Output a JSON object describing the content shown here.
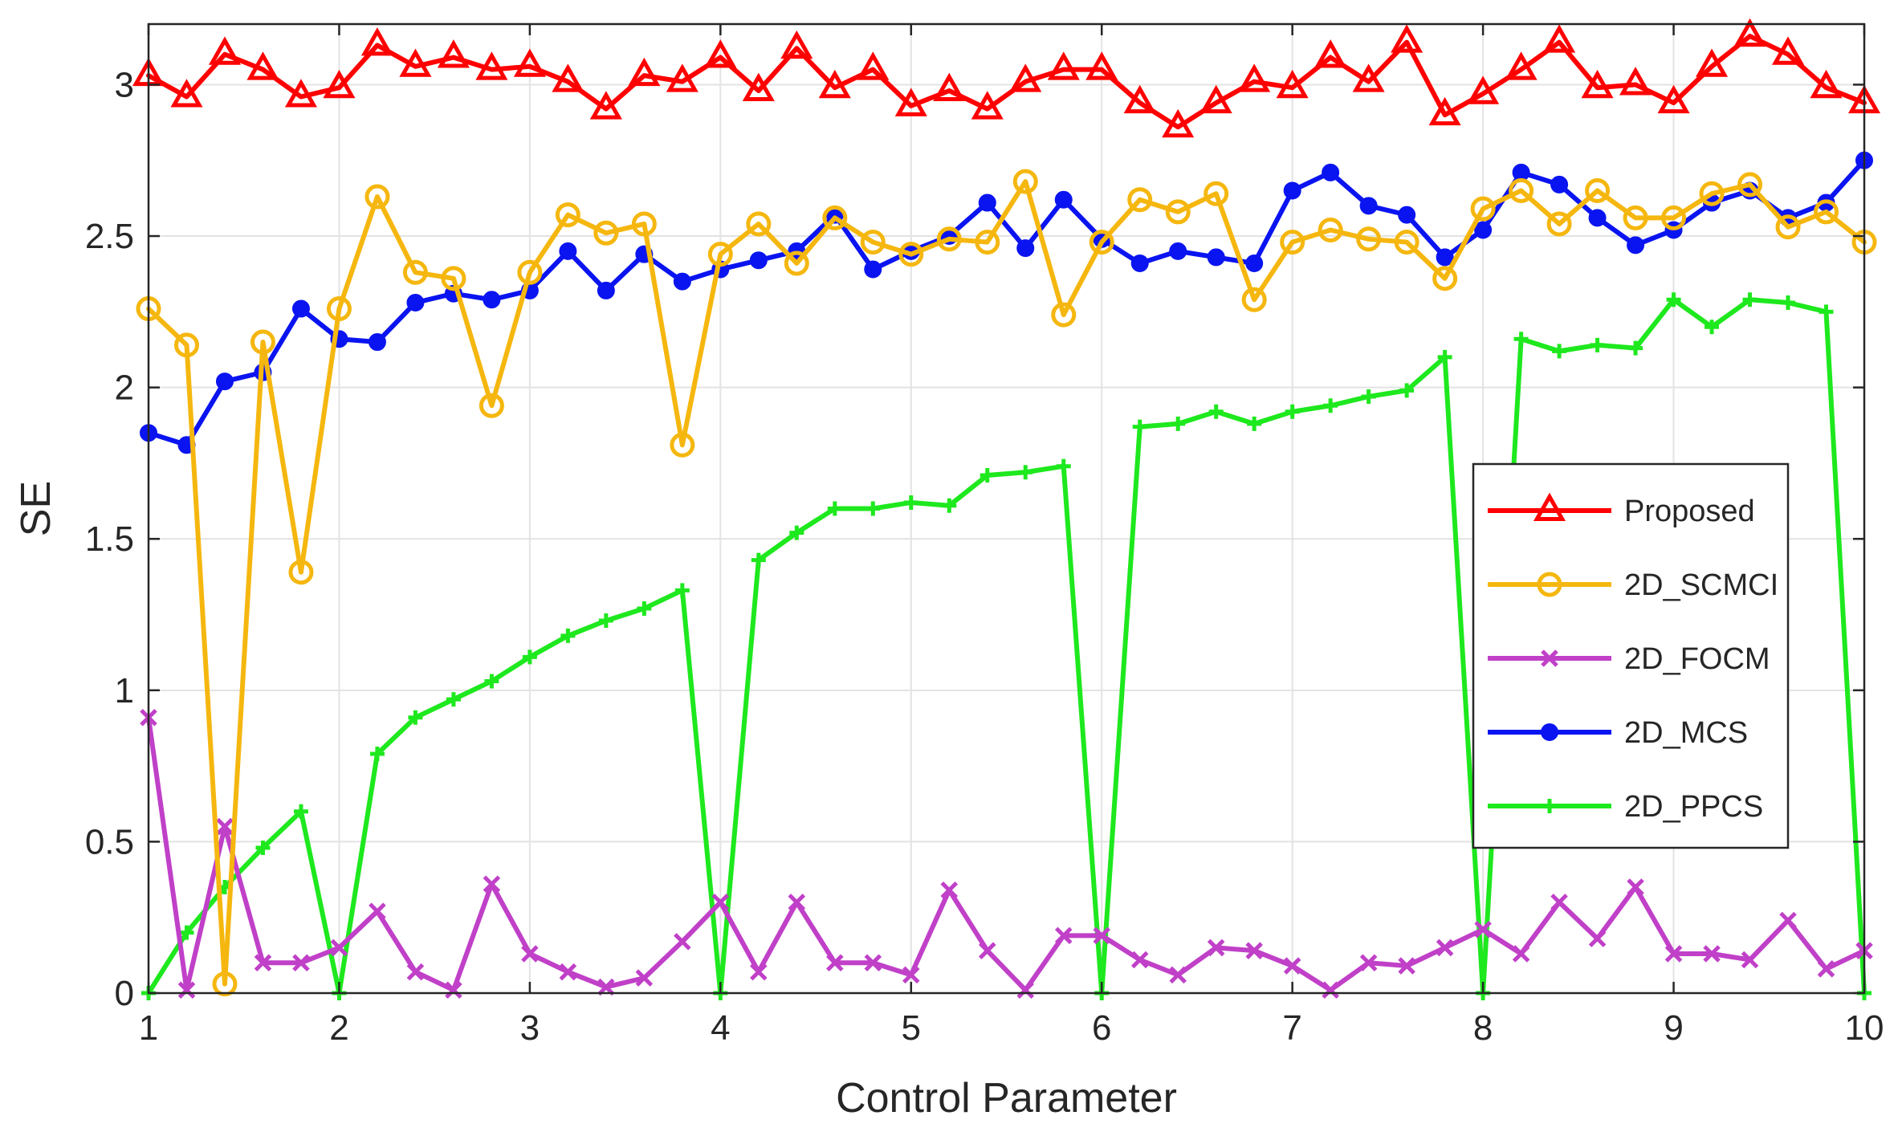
{
  "chart_data": {
    "type": "line",
    "title": "",
    "xlabel": "Control Parameter",
    "ylabel": "SE",
    "xlim": [
      1,
      10
    ],
    "ylim": [
      0,
      3.2
    ],
    "grid": true,
    "legend_position": "right",
    "x_ticks": [
      "1",
      "2",
      "3",
      "4",
      "5",
      "6",
      "7",
      "8",
      "9",
      "10"
    ],
    "y_ticks": [
      "0",
      "0.5",
      "1",
      "1.5",
      "2",
      "2.5",
      "3"
    ],
    "x": [
      1.0,
      1.2,
      1.4,
      1.6,
      1.8,
      2.0,
      2.2,
      2.4,
      2.6,
      2.8,
      3.0,
      3.2,
      3.4,
      3.6,
      3.8,
      4.0,
      4.2,
      4.4,
      4.6,
      4.8,
      5.0,
      5.2,
      5.4,
      5.6,
      5.8,
      6.0,
      6.2,
      6.4,
      6.6,
      6.8,
      7.0,
      7.2,
      7.4,
      7.6,
      7.8,
      8.0,
      8.2,
      8.4,
      8.6,
      8.8,
      9.0,
      9.2,
      9.4,
      9.6,
      9.8,
      10.0
    ],
    "series": [
      {
        "name": "Proposed",
        "color": "#ff0000",
        "marker": "triangle",
        "values": [
          3.03,
          2.96,
          3.1,
          3.05,
          2.96,
          2.99,
          3.13,
          3.06,
          3.09,
          3.05,
          3.06,
          3.01,
          2.92,
          3.03,
          3.01,
          3.09,
          2.98,
          3.12,
          2.99,
          3.05,
          2.93,
          2.98,
          2.92,
          3.01,
          3.05,
          3.05,
          2.94,
          2.86,
          2.94,
          3.01,
          2.99,
          3.09,
          3.01,
          3.14,
          2.9,
          2.97,
          3.05,
          3.14,
          2.99,
          3.0,
          2.94,
          3.06,
          3.16,
          3.1,
          2.99,
          2.94
        ]
      },
      {
        "name": "2D_SCMCI",
        "color": "#f5b70f",
        "marker": "circle",
        "values": [
          2.26,
          2.14,
          0.03,
          2.15,
          1.39,
          2.26,
          2.63,
          2.38,
          2.36,
          1.94,
          2.38,
          2.57,
          2.51,
          2.54,
          1.81,
          2.44,
          2.54,
          2.41,
          2.56,
          2.48,
          2.44,
          2.49,
          2.48,
          2.68,
          2.24,
          2.48,
          2.62,
          2.58,
          2.64,
          2.29,
          2.48,
          2.52,
          2.49,
          2.48,
          2.36,
          2.59,
          2.65,
          2.54,
          2.65,
          2.56,
          2.56,
          2.64,
          2.67,
          2.53,
          2.58,
          2.48
        ]
      },
      {
        "name": "2D_FOCM",
        "color": "#c040c8",
        "marker": "x",
        "values": [
          0.91,
          0.01,
          0.55,
          0.1,
          0.1,
          0.15,
          0.27,
          0.07,
          0.01,
          0.36,
          0.13,
          0.07,
          0.02,
          0.05,
          0.17,
          0.3,
          0.07,
          0.3,
          0.1,
          0.1,
          0.06,
          0.34,
          0.14,
          0.01,
          0.19,
          0.19,
          0.11,
          0.06,
          0.15,
          0.14,
          0.09,
          0.01,
          0.1,
          0.09,
          0.15,
          0.21,
          0.13,
          0.3,
          0.18,
          0.35,
          0.13,
          0.13,
          0.11,
          0.24,
          0.08,
          0.14
        ]
      },
      {
        "name": "2D_MCS",
        "color": "#0a14f0",
        "marker": "dot",
        "values": [
          1.85,
          1.81,
          2.02,
          2.05,
          2.26,
          2.16,
          2.15,
          2.28,
          2.31,
          2.29,
          2.32,
          2.45,
          2.32,
          2.44,
          2.35,
          2.39,
          2.42,
          2.45,
          2.57,
          2.39,
          2.45,
          2.5,
          2.61,
          2.46,
          2.62,
          2.49,
          2.41,
          2.45,
          2.43,
          2.41,
          2.65,
          2.71,
          2.6,
          2.57,
          2.43,
          2.52,
          2.71,
          2.67,
          2.56,
          2.47,
          2.52,
          2.61,
          2.65,
          2.56,
          2.61,
          2.75
        ]
      },
      {
        "name": "2D_PPCS",
        "color": "#1ee81e",
        "marker": "plus",
        "values": [
          0.0,
          0.2,
          0.35,
          0.48,
          0.6,
          0.0,
          0.79,
          0.91,
          0.97,
          1.03,
          1.11,
          1.18,
          1.23,
          1.27,
          1.33,
          0.0,
          1.43,
          1.52,
          1.6,
          1.6,
          1.62,
          1.61,
          1.71,
          1.72,
          1.74,
          0.0,
          1.87,
          1.88,
          1.92,
          1.88,
          1.92,
          1.94,
          1.97,
          1.99,
          2.1,
          0.0,
          2.16,
          2.12,
          2.14,
          2.13,
          2.29,
          2.2,
          2.29,
          2.28,
          2.25,
          0.0
        ]
      }
    ]
  }
}
